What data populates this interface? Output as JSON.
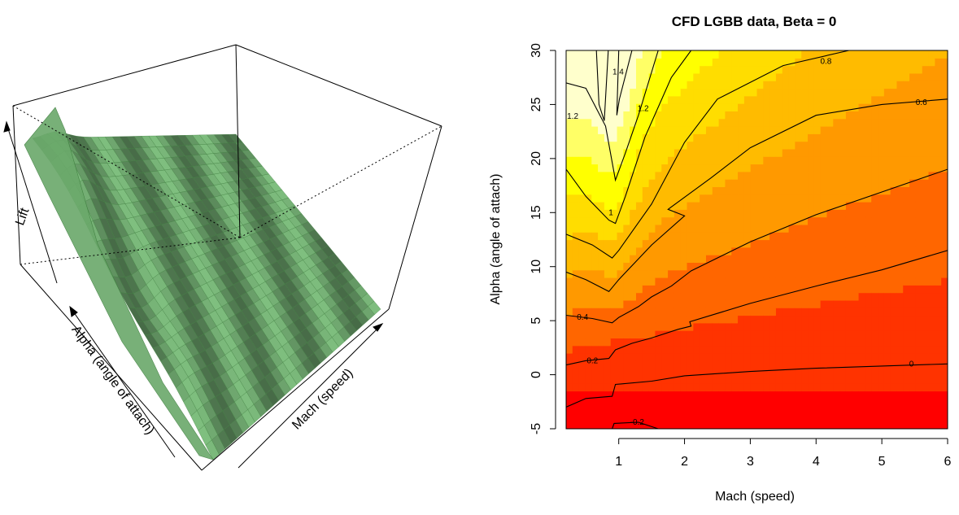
{
  "chart_data": [
    {
      "type": "surface3d",
      "title": "",
      "xlabel": "Mach (speed)",
      "ylabel": "Alpha (angle of attach)",
      "zlabel": "Lift",
      "surface_color": "#7fbf7f",
      "mesh_color": "#3f7f3f"
    },
    {
      "type": "heatmap",
      "title": "CFD LGBB data, Beta = 0",
      "xlabel": "Mach (speed)",
      "ylabel": "Alpha (angle of attach)",
      "xlim": [
        0.2,
        6.0
      ],
      "ylim": [
        -5,
        30
      ],
      "xticks": [
        1,
        2,
        3,
        4,
        5,
        6
      ],
      "yticks": [
        -5,
        0,
        5,
        10,
        15,
        20,
        25,
        30
      ],
      "palette": [
        "#ff0000",
        "#ff3300",
        "#ff6600",
        "#ff9900",
        "#ffbb00",
        "#ffdd00",
        "#ffff00",
        "#ffff66",
        "#ffffcc"
      ],
      "contours": [
        {
          "level": "-0.2",
          "points": [
            [
              0.9,
              -5.0
            ],
            [
              0.93,
              -4.5
            ],
            [
              1.3,
              -4.4
            ],
            [
              1.6,
              -5.0
            ]
          ]
        },
        {
          "level": "0",
          "points": [
            [
              0.2,
              -3.0
            ],
            [
              0.5,
              -2.2
            ],
            [
              0.9,
              -2.0
            ],
            [
              0.95,
              -0.9
            ],
            [
              1.5,
              -0.6
            ],
            [
              2.0,
              -0.1
            ],
            [
              3.0,
              0.3
            ],
            [
              4.0,
              0.6
            ],
            [
              5.0,
              0.8
            ],
            [
              6.0,
              1.0
            ]
          ]
        },
        {
          "level": "0.2",
          "points": [
            [
              0.2,
              0.9
            ],
            [
              0.5,
              1.3
            ],
            [
              0.85,
              1.5
            ],
            [
              0.95,
              2.3
            ],
            [
              1.2,
              2.9
            ],
            [
              1.5,
              3.4
            ],
            [
              1.9,
              4.2
            ],
            [
              2.1,
              4.5
            ],
            [
              2.08,
              4.9
            ],
            [
              3.0,
              6.6
            ],
            [
              4.0,
              8.2
            ],
            [
              5.0,
              9.7
            ],
            [
              6.0,
              11.5
            ]
          ]
        },
        {
          "level": "0.4",
          "points": [
            [
              0.2,
              5.5
            ],
            [
              0.6,
              5.2
            ],
            [
              0.9,
              4.8
            ],
            [
              1.0,
              5.3
            ],
            [
              1.3,
              6.3
            ],
            [
              1.5,
              7.2
            ],
            [
              1.8,
              8.2
            ],
            [
              2.1,
              9.6
            ],
            [
              3.0,
              12.3
            ],
            [
              4.0,
              14.8
            ],
            [
              5.0,
              16.9
            ],
            [
              6.0,
              19.0
            ]
          ]
        },
        {
          "level": "0.6",
          "points": [
            [
              0.2,
              9.5
            ],
            [
              0.5,
              8.8
            ],
            [
              0.85,
              7.7
            ],
            [
              1.0,
              8.8
            ],
            [
              1.5,
              12.0
            ],
            [
              2.0,
              14.7
            ],
            [
              1.75,
              15.3
            ],
            [
              2.4,
              18.2
            ],
            [
              3.0,
              21.0
            ],
            [
              4.0,
              24.0
            ],
            [
              5.0,
              25.0
            ],
            [
              6.0,
              25.5
            ]
          ]
        },
        {
          "level": "0.8",
          "points": [
            [
              0.2,
              13.0
            ],
            [
              0.6,
              12.0
            ],
            [
              0.9,
              10.8
            ],
            [
              1.0,
              11.5
            ],
            [
              1.5,
              15.8
            ],
            [
              2.0,
              21.5
            ],
            [
              2.5,
              25.5
            ],
            [
              3.5,
              28.6
            ],
            [
              4.5,
              30.0
            ]
          ]
        },
        {
          "level": "1",
          "points": [
            [
              0.2,
              19.0
            ],
            [
              0.5,
              16.5
            ],
            [
              0.85,
              14.3
            ],
            [
              0.95,
              14.0
            ],
            [
              1.1,
              16.5
            ],
            [
              1.4,
              22.0
            ],
            [
              1.8,
              27.5
            ],
            [
              2.1,
              30.0
            ]
          ]
        },
        {
          "level": "1.2",
          "points": [
            [
              0.2,
              27.0
            ],
            [
              0.5,
              26.5
            ],
            [
              0.8,
              23.0
            ],
            [
              0.95,
              18.0
            ],
            [
              1.1,
              20.5
            ],
            [
              1.3,
              24.0
            ],
            [
              1.6,
              30.0
            ]
          ]
        },
        {
          "level": "1.2b",
          "points": [
            [
              1.0,
              30.0
            ],
            [
              0.98,
              26.0
            ],
            [
              0.97,
              24.0
            ],
            [
              1.01,
              25.5
            ],
            [
              1.2,
              30.0
            ]
          ]
        },
        {
          "level": "1.4",
          "points": [
            [
              0.66,
              30.0
            ],
            [
              0.7,
              25.0
            ],
            [
              0.78,
              23.5
            ],
            [
              0.84,
              30.0
            ]
          ]
        }
      ],
      "contour_labels": [
        {
          "text": "-0.2",
          "x": 1.28,
          "y": -4.4
        },
        {
          "text": "0",
          "x": 5.45,
          "y": 1.0
        },
        {
          "text": "0.2",
          "x": 0.6,
          "y": 1.3
        },
        {
          "text": "0.4",
          "x": 0.45,
          "y": 5.3
        },
        {
          "text": "0.6",
          "x": 5.6,
          "y": 25.2
        },
        {
          "text": "0.8",
          "x": 4.15,
          "y": 29.0
        },
        {
          "text": "1",
          "x": 0.88,
          "y": 15.0
        },
        {
          "text": "1.2",
          "x": 1.37,
          "y": 24.6
        },
        {
          "text": "1.2",
          "x": 0.3,
          "y": 23.9
        },
        {
          "text": "1.4",
          "x": 0.99,
          "y": 28.0
        }
      ]
    }
  ]
}
